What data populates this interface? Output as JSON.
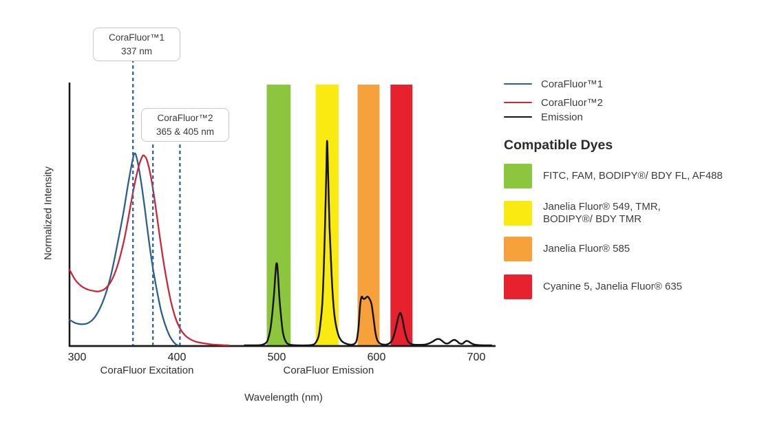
{
  "figure": {
    "background": "#ffffff",
    "text_color": "#3a3a3a"
  },
  "axes": {
    "ylabel": "Normalized Intensity",
    "xlabel": "Wavelength (nm)",
    "x_ticks": [
      300,
      400,
      500,
      600,
      700
    ],
    "x_section_labels": [
      {
        "text": "CoraFluor Excitation",
        "center_nm": 370
      },
      {
        "text": "CoraFluor Emission",
        "center_nm": 552
      }
    ]
  },
  "annotations": [
    {
      "title": "CoraFluor™1",
      "value": "337 nm",
      "marker_nm": [
        356
      ]
    },
    {
      "title": "CoraFluor™2",
      "value": "365 & 405 nm",
      "marker_nm": [
        376,
        403
      ]
    }
  ],
  "legend": [
    {
      "label": "CoraFluor™1",
      "color": "#2B5F8D"
    },
    {
      "label": "CoraFluor™2",
      "color": "#C9273A"
    },
    {
      "label": "Emission",
      "color": "#141414"
    }
  ],
  "dyes": {
    "heading": "Compatible Dyes",
    "items": [
      {
        "color": "#8CC63F",
        "label_lines": [
          "FITC, FAM, BODIPY®/ BDY FL, AF488"
        ]
      },
      {
        "color": "#F9EB12",
        "label_lines": [
          "Janelia Fluor® 549, TMR,",
          "BODIPY®/ BDY TMR"
        ]
      },
      {
        "color": "#F7A13C",
        "label_lines": [
          "Janelia Fluor® 585"
        ]
      },
      {
        "color": "#E8212E",
        "label_lines": [
          "Cyanine 5, Janelia Fluor® 635"
        ]
      }
    ]
  },
  "chart_data": {
    "type": "line",
    "title": "",
    "xlabel": "Wavelength (nm)",
    "ylabel": "Normalized Intensity",
    "xlim_nm": [
      292,
      719
    ],
    "ylim": [
      0,
      1
    ],
    "grid": false,
    "dashed_marker_color": "#35689B",
    "bands_nm": [
      {
        "dye_group": "FITC, FAM, BODIPY®/ BDY FL, AF488",
        "range": [
          490,
          514
        ],
        "color": "#8CC63F"
      },
      {
        "dye_group": "Janelia Fluor® 549, TMR, BODIPY®/ BDY TMR",
        "range": [
          539,
          562
        ],
        "color": "#F9EB12"
      },
      {
        "dye_group": "Janelia Fluor® 585",
        "range": [
          581,
          603
        ],
        "color": "#F7A13C"
      },
      {
        "dye_group": "Cyanine 5, Janelia Fluor® 635",
        "range": [
          614,
          636
        ],
        "color": "#E8212E"
      }
    ],
    "series": [
      {
        "name": "CoraFluor™1",
        "color": "#2B5F8D",
        "points": [
          [
            292.5,
            0.098
          ],
          [
            298,
            0.086
          ],
          [
            304,
            0.081
          ],
          [
            310,
            0.084
          ],
          [
            316,
            0.1
          ],
          [
            322,
            0.135
          ],
          [
            328,
            0.19
          ],
          [
            334,
            0.27
          ],
          [
            340,
            0.38
          ],
          [
            346,
            0.5
          ],
          [
            351,
            0.615
          ],
          [
            355,
            0.7
          ],
          [
            357.5,
            0.736
          ],
          [
            360,
            0.715
          ],
          [
            364,
            0.63
          ],
          [
            368,
            0.52
          ],
          [
            372,
            0.4
          ],
          [
            376,
            0.295
          ],
          [
            380,
            0.21
          ],
          [
            384,
            0.135
          ],
          [
            388,
            0.082
          ],
          [
            392,
            0.042
          ],
          [
            396,
            0.016
          ],
          [
            399,
            0.004
          ],
          [
            401,
            0
          ]
        ]
      },
      {
        "name": "CoraFluor™2",
        "color": "#C9273A",
        "points": [
          [
            292.5,
            0.29
          ],
          [
            298,
            0.252
          ],
          [
            304,
            0.228
          ],
          [
            310,
            0.215
          ],
          [
            316,
            0.209
          ],
          [
            322,
            0.207
          ],
          [
            328,
            0.217
          ],
          [
            334,
            0.245
          ],
          [
            340,
            0.3
          ],
          [
            346,
            0.385
          ],
          [
            350,
            0.46
          ],
          [
            354,
            0.545
          ],
          [
            358,
            0.625
          ],
          [
            362,
            0.69
          ],
          [
            365,
            0.722
          ],
          [
            367,
            0.728
          ],
          [
            370,
            0.71
          ],
          [
            374,
            0.645
          ],
          [
            378,
            0.55
          ],
          [
            382,
            0.44
          ],
          [
            386,
            0.335
          ],
          [
            390,
            0.245
          ],
          [
            394,
            0.168
          ],
          [
            398,
            0.112
          ],
          [
            402,
            0.073
          ],
          [
            406,
            0.048
          ],
          [
            410,
            0.032
          ],
          [
            415,
            0.02
          ],
          [
            420,
            0.013
          ],
          [
            428,
            0.007
          ],
          [
            436,
            0.003
          ],
          [
            445,
            0.001
          ],
          [
            452,
            0
          ]
        ]
      },
      {
        "name": "Emission",
        "color": "#141414",
        "points": [
          [
            468,
            0
          ],
          [
            478,
            0
          ],
          [
            484,
            0.001
          ],
          [
            488,
            0.006
          ],
          [
            491,
            0.02
          ],
          [
            494,
            0.07
          ],
          [
            497,
            0.18
          ],
          [
            499,
            0.29
          ],
          [
            500,
            0.315
          ],
          [
            501,
            0.29
          ],
          [
            503,
            0.17
          ],
          [
            506,
            0.055
          ],
          [
            509,
            0.015
          ],
          [
            512,
            0.004
          ],
          [
            516,
            0.001
          ],
          [
            522,
            0
          ],
          [
            530,
            0
          ],
          [
            536,
            0.002
          ],
          [
            539,
            0.01
          ],
          [
            542,
            0.035
          ],
          [
            544,
            0.09
          ],
          [
            546,
            0.18
          ],
          [
            548,
            0.4
          ],
          [
            549.5,
            0.63
          ],
          [
            550.5,
            0.784
          ],
          [
            551.5,
            0.66
          ],
          [
            553,
            0.45
          ],
          [
            555,
            0.27
          ],
          [
            557,
            0.15
          ],
          [
            559,
            0.085
          ],
          [
            562,
            0.038
          ],
          [
            565,
            0.017
          ],
          [
            569,
            0.007
          ],
          [
            573,
            0.003
          ],
          [
            577,
            0.004
          ],
          [
            580,
            0.018
          ],
          [
            582,
            0.07
          ],
          [
            583.5,
            0.15
          ],
          [
            585,
            0.186
          ],
          [
            587,
            0.178
          ],
          [
            589,
            0.181
          ],
          [
            591,
            0.187
          ],
          [
            593,
            0.178
          ],
          [
            595,
            0.158
          ],
          [
            597,
            0.105
          ],
          [
            599,
            0.048
          ],
          [
            601,
            0.018
          ],
          [
            604,
            0.006
          ],
          [
            607,
            0.003
          ],
          [
            610,
            0.003
          ],
          [
            613,
            0.008
          ],
          [
            616,
            0.022
          ],
          [
            619,
            0.06
          ],
          [
            622,
            0.11
          ],
          [
            624,
            0.124
          ],
          [
            626,
            0.1
          ],
          [
            628,
            0.06
          ],
          [
            630,
            0.03
          ],
          [
            632,
            0.013
          ],
          [
            635,
            0.005
          ],
          [
            639,
            0.002
          ],
          [
            644,
            0.002
          ],
          [
            649,
            0.003
          ],
          [
            653,
            0.008
          ],
          [
            657,
            0.016
          ],
          [
            660,
            0.023
          ],
          [
            663,
            0.024
          ],
          [
            666,
            0.016
          ],
          [
            669,
            0.008
          ],
          [
            672,
            0.008
          ],
          [
            675,
            0.016
          ],
          [
            678,
            0.021
          ],
          [
            681,
            0.015
          ],
          [
            683,
            0.008
          ],
          [
            686,
            0.006
          ],
          [
            688,
            0.012
          ],
          [
            690,
            0.017
          ],
          [
            692,
            0.015
          ],
          [
            695,
            0.008
          ],
          [
            698,
            0.003
          ],
          [
            702,
            0.001
          ],
          [
            708,
            0
          ],
          [
            715,
            0
          ]
        ]
      }
    ]
  }
}
